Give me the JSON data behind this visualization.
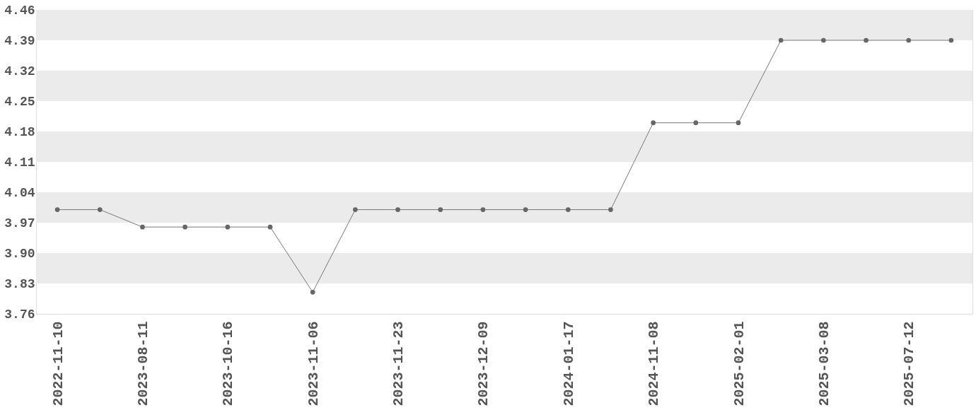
{
  "chart_data": {
    "type": "line",
    "categories": [
      "2022-11-10",
      null,
      "2023-08-11",
      null,
      "2023-10-16",
      null,
      "2023-11-06",
      null,
      "2023-11-23",
      null,
      "2023-12-09",
      null,
      "2024-01-17",
      null,
      "2024-11-08",
      null,
      "2025-02-01",
      null,
      "2025-03-08",
      null,
      "2025-07-12",
      null
    ],
    "series": [
      {
        "color": "#777777",
        "values": [
          4.0,
          4.0,
          3.96,
          3.96,
          3.96,
          3.96,
          3.81,
          4.0,
          4.0,
          4.0,
          4.0,
          4.0,
          4.0,
          4.0,
          4.2,
          4.2,
          4.2,
          4.39,
          4.39,
          4.39,
          4.39,
          4.39
        ]
      }
    ],
    "ylim": [
      3.76,
      4.46
    ],
    "yticks": [
      3.76,
      3.83,
      {
        "value": 3.9,
        "label": "3.90"
      },
      3.97,
      4.04,
      4.11,
      4.18,
      4.25,
      4.32,
      4.39,
      4.46
    ],
    "bands": [
      {
        "axis": "y",
        "from": 4.39,
        "to": 4.46,
        "color": "#ebebeb"
      },
      {
        "axis": "y",
        "from": 4.25,
        "to": 4.32,
        "color": "#ebebeb"
      },
      {
        "axis": "y",
        "from": 4.11,
        "to": 4.18,
        "color": "#ebebeb"
      },
      {
        "axis": "y",
        "from": 3.97,
        "to": 4.04,
        "color": "#ebebeb"
      },
      {
        "axis": "y",
        "from": 3.83,
        "to": 3.9,
        "color": "#ebebeb"
      }
    ],
    "marker": "circle",
    "line_style": "solid",
    "grid": false
  }
}
